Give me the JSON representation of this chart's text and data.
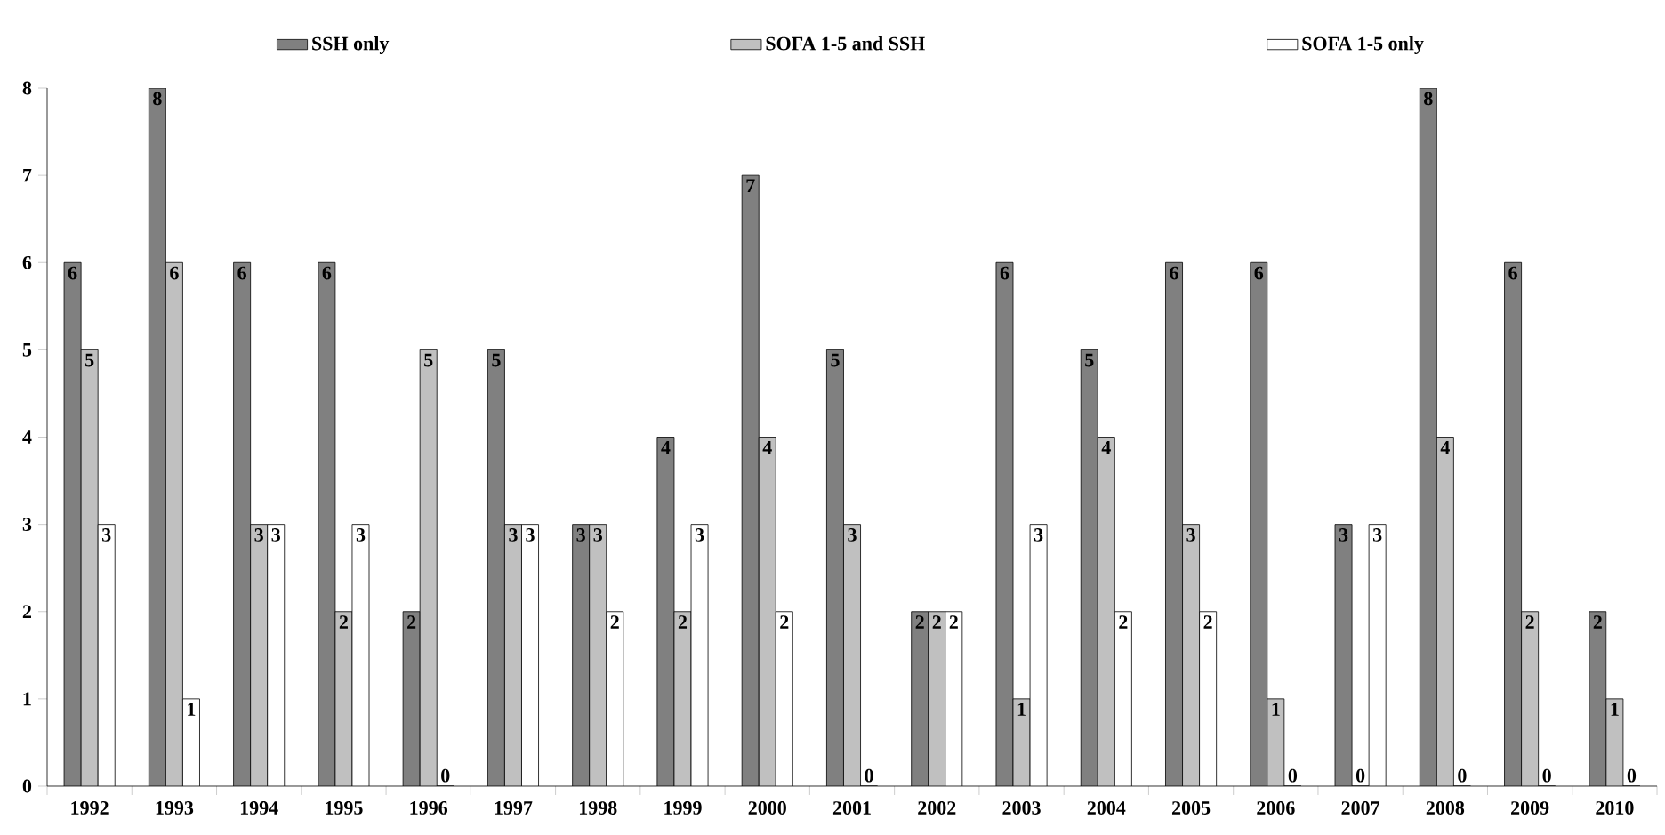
{
  "chart_data": {
    "type": "bar",
    "categories": [
      "1992",
      "1993",
      "1994",
      "1995",
      "1996",
      "1997",
      "1998",
      "1999",
      "2000",
      "2001",
      "2002",
      "2003",
      "2004",
      "2005",
      "2006",
      "2007",
      "2008",
      "2009",
      "2010"
    ],
    "series": [
      {
        "name": "SSH only",
        "color": "#808080",
        "values": [
          6,
          8,
          6,
          6,
          2,
          5,
          3,
          4,
          7,
          5,
          2,
          6,
          5,
          6,
          6,
          3,
          8,
          6,
          2
        ]
      },
      {
        "name": "SOFA 1-5 and SSH",
        "color": "#c0c0c0",
        "values": [
          5,
          6,
          3,
          2,
          5,
          3,
          3,
          2,
          4,
          3,
          2,
          1,
          4,
          3,
          1,
          0,
          4,
          2,
          1
        ]
      },
      {
        "name": "SOFA 1-5 only",
        "color": "#ffffff",
        "values": [
          3,
          1,
          3,
          3,
          0,
          3,
          2,
          3,
          2,
          0,
          2,
          3,
          2,
          2,
          0,
          3,
          0,
          0,
          0
        ]
      }
    ],
    "ylim": [
      0,
      8
    ],
    "yticks": [
      0,
      1,
      2,
      3,
      4,
      5,
      6,
      7,
      8
    ],
    "data_labels": true,
    "grid": false,
    "legend": "top"
  }
}
